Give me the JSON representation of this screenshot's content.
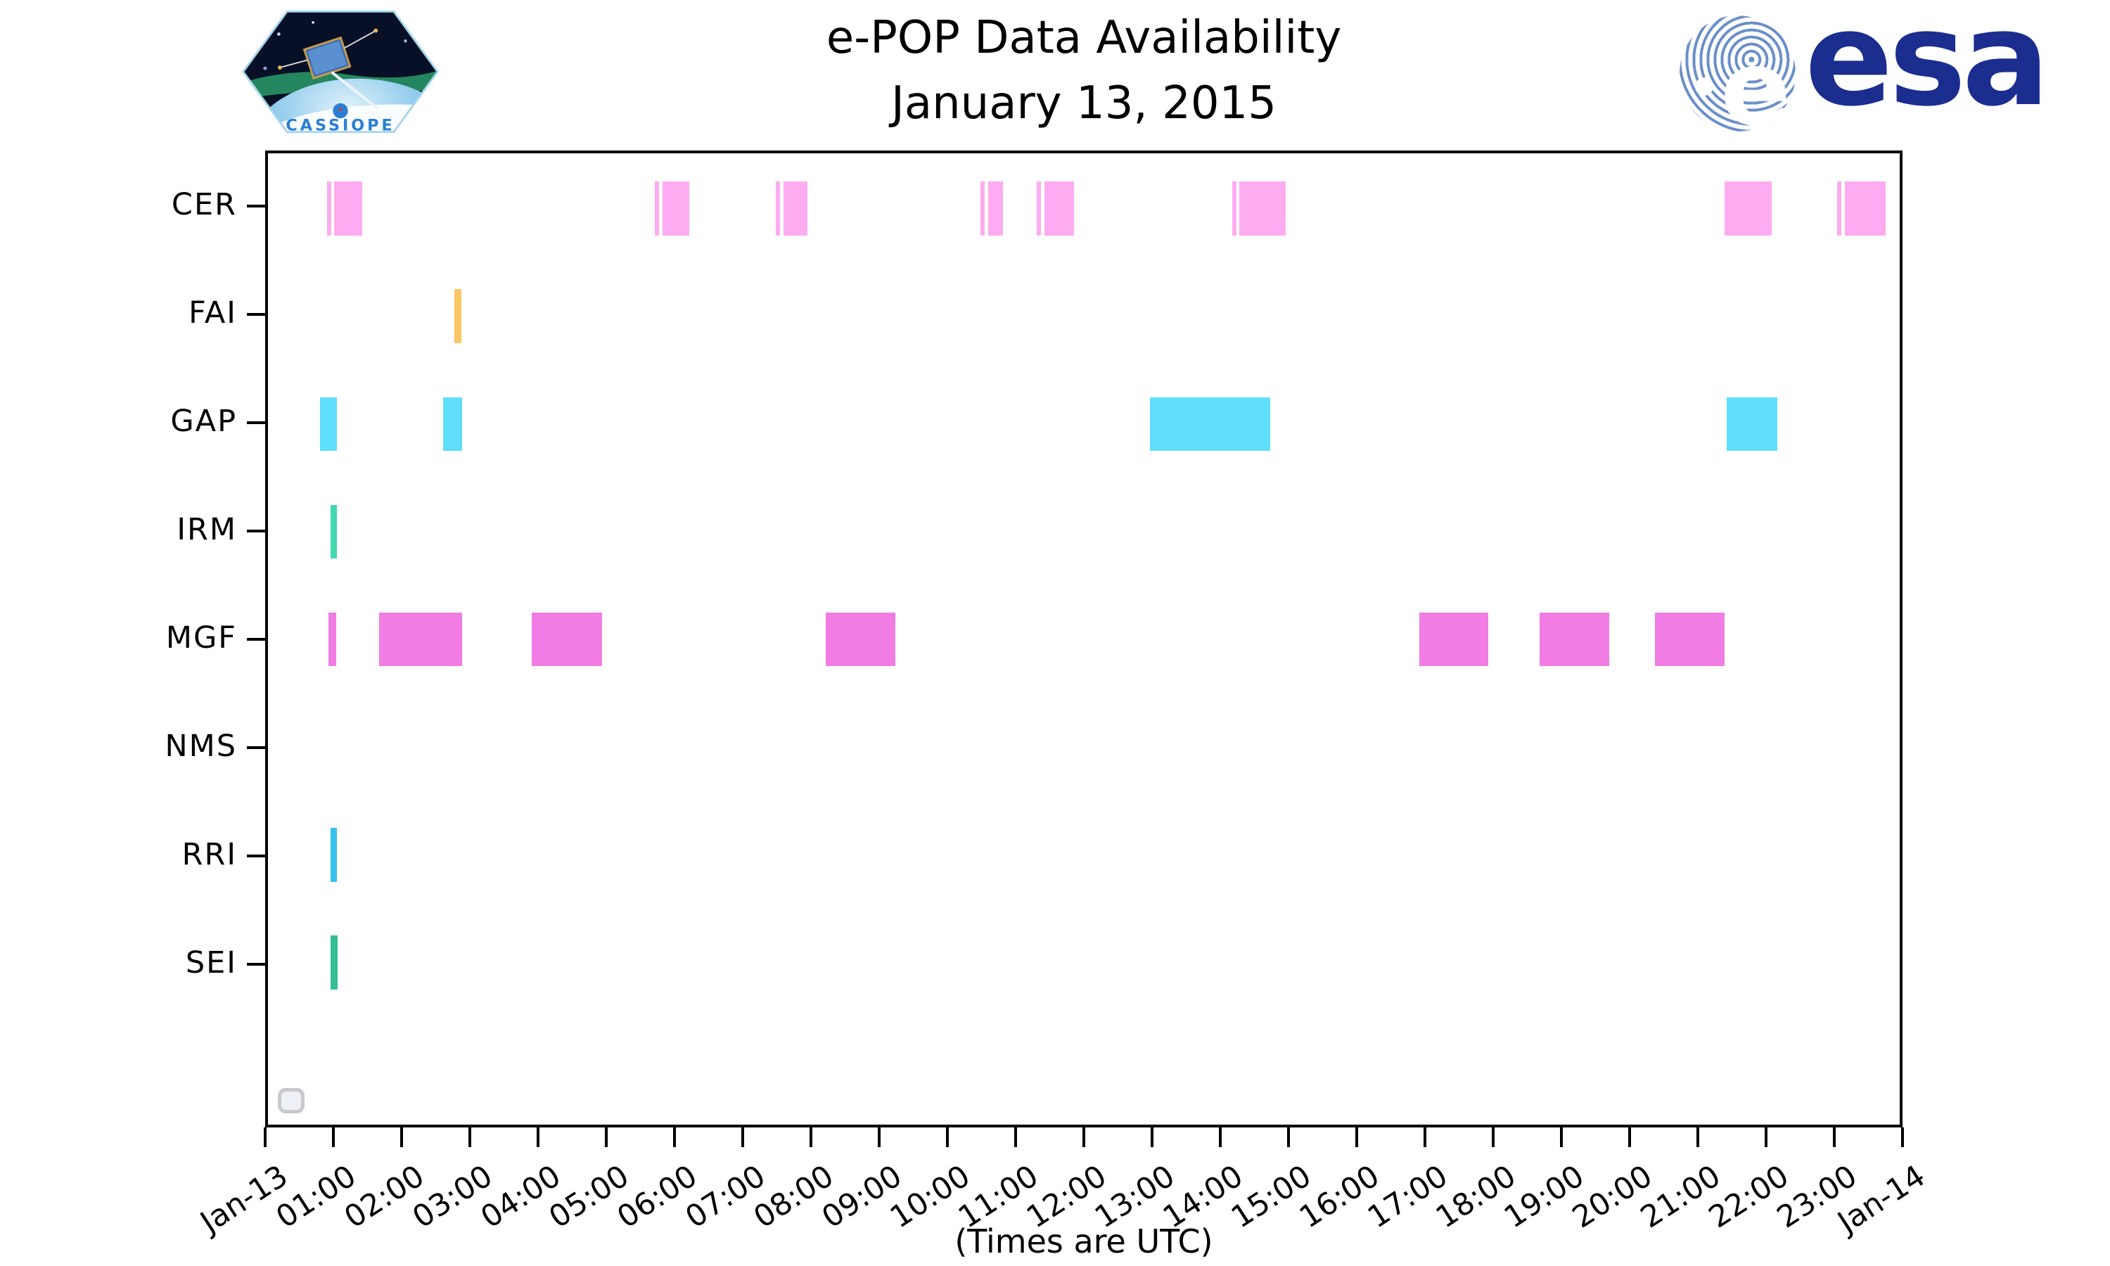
{
  "title": {
    "line1": "e-POP Data Availability",
    "line2": "January 13, 2015"
  },
  "caption": "(Times are UTC)",
  "logos": {
    "cassiope_label": "CASSIOPE",
    "esa_label": "esa"
  },
  "colors": {
    "axis": "#000000",
    "background": "#ffffff",
    "widget_border": "#c9c9cd",
    "widget_fill": "#eef0f7",
    "esa_navy": "#1b2d8f",
    "esa_swirl_blue": "#6b8fc9",
    "cassiope_blue": "#2a7fd4"
  },
  "chart_data": {
    "type": "bar",
    "subtype": "timeline-availability",
    "title": "e-POP Data Availability January 13, 2015",
    "xlabel": "(Times are UTC)",
    "ylabel": "",
    "x_axis": {
      "range_hours": [
        0,
        24
      ],
      "tick_interval_hours": 1,
      "tick_labels": [
        "Jan-13",
        "01:00",
        "02:00",
        "03:00",
        "04:00",
        "05:00",
        "06:00",
        "07:00",
        "08:00",
        "09:00",
        "10:00",
        "11:00",
        "12:00",
        "13:00",
        "14:00",
        "15:00",
        "16:00",
        "17:00",
        "18:00",
        "19:00",
        "20:00",
        "21:00",
        "22:00",
        "23:00",
        "Jan-14"
      ]
    },
    "grid": false,
    "legend": false,
    "rows": [
      {
        "label": "CER",
        "color": "#fdacf1",
        "intervals_hours": [
          [
            0.87,
            0.93
          ],
          [
            0.97,
            1.39
          ],
          [
            5.69,
            5.75
          ],
          [
            5.8,
            6.2
          ],
          [
            7.47,
            7.53
          ],
          [
            7.58,
            7.93
          ],
          [
            10.48,
            10.54
          ],
          [
            10.59,
            10.81
          ],
          [
            11.31,
            11.37
          ],
          [
            11.42,
            11.86
          ],
          [
            14.18,
            14.24
          ],
          [
            14.29,
            14.97
          ],
          [
            21.42,
            22.12
          ],
          [
            23.08,
            23.14
          ],
          [
            23.19,
            23.79
          ]
        ]
      },
      {
        "label": "FAI",
        "color": "#fac764",
        "intervals_hours": [
          [
            2.74,
            2.84
          ]
        ]
      },
      {
        "label": "GAP",
        "color": "#5fdffb",
        "intervals_hours": [
          [
            0.77,
            1.01
          ],
          [
            2.58,
            2.86
          ],
          [
            12.97,
            14.74
          ],
          [
            21.45,
            22.2
          ]
        ]
      },
      {
        "label": "IRM",
        "color": "#41d8b0",
        "intervals_hours": [
          [
            0.92,
            1.01
          ]
        ]
      },
      {
        "label": "MGF",
        "color": "#f07ce4",
        "intervals_hours": [
          [
            0.89,
            1.0
          ],
          [
            1.63,
            2.86
          ],
          [
            3.88,
            4.91
          ],
          [
            8.2,
            9.23
          ],
          [
            16.93,
            17.95
          ],
          [
            18.7,
            19.73
          ],
          [
            20.4,
            21.42
          ]
        ]
      },
      {
        "label": "NMS",
        "color": null,
        "intervals_hours": []
      },
      {
        "label": "RRI",
        "color": "#36c2ed",
        "intervals_hours": [
          [
            0.92,
            1.01
          ]
        ]
      },
      {
        "label": "SEI",
        "color": "#35bd96",
        "intervals_hours": [
          [
            0.92,
            1.02
          ]
        ]
      }
    ]
  }
}
